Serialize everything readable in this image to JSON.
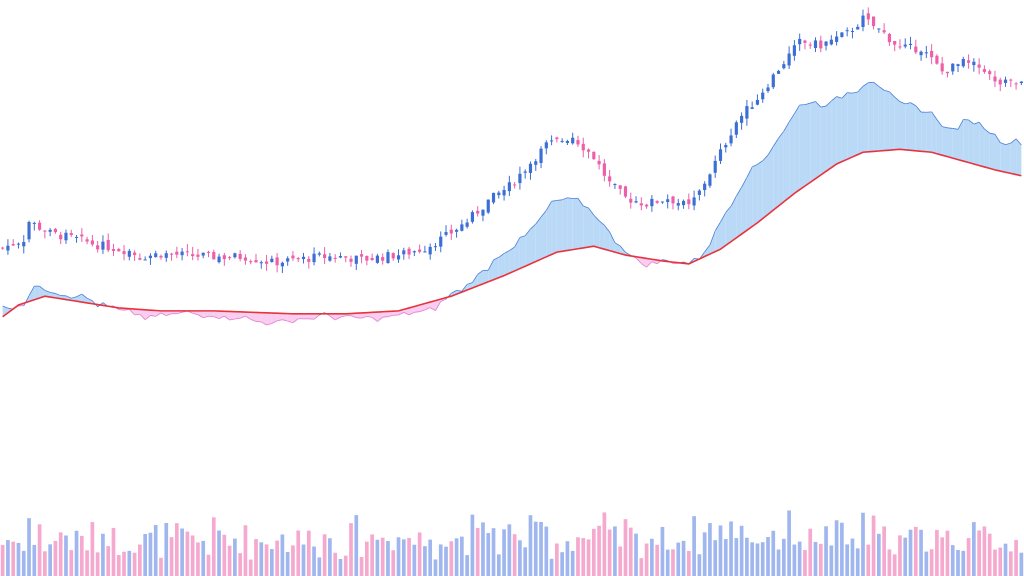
{
  "colors": {
    "background": "#ffffff",
    "up": "#3b6fd4",
    "down": "#ee5fa8",
    "volume_up": "#9fb7ee",
    "volume_down": "#f5a9cf",
    "ma_line": "#e8333d",
    "fill_above": "#b9d9f7",
    "fill_below": "#f9cdef",
    "osc_above_line": "#4a7fd6",
    "osc_below_line": "#e27ccf"
  },
  "chart_data": {
    "type": "candlestick",
    "title": "",
    "xlabel": "",
    "ylabel": "",
    "grid": false,
    "legend": "none",
    "ylim": [
      20,
      180
    ],
    "volume_max": 100,
    "anchor_closes": [
      [
        0,
        99
      ],
      [
        4,
        102
      ],
      [
        5,
        108
      ],
      [
        9,
        104
      ],
      [
        14,
        102
      ],
      [
        18,
        100
      ],
      [
        24,
        98
      ],
      [
        26,
        96
      ],
      [
        30,
        97
      ],
      [
        40,
        96
      ],
      [
        46,
        96
      ],
      [
        51,
        94
      ],
      [
        56,
        95
      ],
      [
        60,
        96
      ],
      [
        64,
        96
      ],
      [
        68,
        95
      ],
      [
        72,
        96
      ],
      [
        76,
        97
      ],
      [
        80,
        99
      ],
      [
        84,
        103
      ],
      [
        88,
        108
      ],
      [
        92,
        115
      ],
      [
        96,
        120
      ],
      [
        100,
        128
      ],
      [
        103,
        134
      ],
      [
        108,
        137
      ],
      [
        112,
        130
      ],
      [
        115,
        121
      ],
      [
        118,
        116
      ],
      [
        122,
        114
      ],
      [
        126,
        116
      ],
      [
        130,
        113
      ],
      [
        132,
        118
      ],
      [
        135,
        128
      ],
      [
        139,
        142
      ],
      [
        143,
        150
      ],
      [
        147,
        160
      ],
      [
        151,
        169
      ],
      [
        155,
        168
      ],
      [
        160,
        172
      ],
      [
        163,
        177
      ],
      [
        167,
        172
      ],
      [
        170,
        167
      ],
      [
        174,
        167
      ],
      [
        178,
        159
      ],
      [
        182,
        162
      ],
      [
        186,
        160
      ],
      [
        188,
        155
      ],
      [
        193,
        155
      ]
    ],
    "overlay_anchors": [
      [
        0,
        96
      ],
      [
        3,
        100
      ],
      [
        8,
        103
      ],
      [
        15,
        101
      ],
      [
        22,
        99
      ],
      [
        30,
        98
      ],
      [
        40,
        98
      ],
      [
        55,
        97
      ],
      [
        65,
        97
      ],
      [
        75,
        98
      ],
      [
        85,
        103
      ],
      [
        95,
        110
      ],
      [
        105,
        118
      ],
      [
        112,
        120
      ],
      [
        118,
        117
      ],
      [
        125,
        115
      ],
      [
        130,
        114
      ],
      [
        136,
        119
      ],
      [
        143,
        128
      ],
      [
        150,
        138
      ],
      [
        158,
        148
      ],
      [
        163,
        152
      ],
      [
        170,
        153
      ],
      [
        176,
        152
      ],
      [
        182,
        149
      ],
      [
        188,
        146
      ],
      [
        193,
        144
      ]
    ],
    "seed": 7,
    "series": [
      {
        "values": "generated-ohlc"
      },
      {
        "values": "volume-bars"
      },
      {
        "values": "moving-average"
      }
    ]
  }
}
